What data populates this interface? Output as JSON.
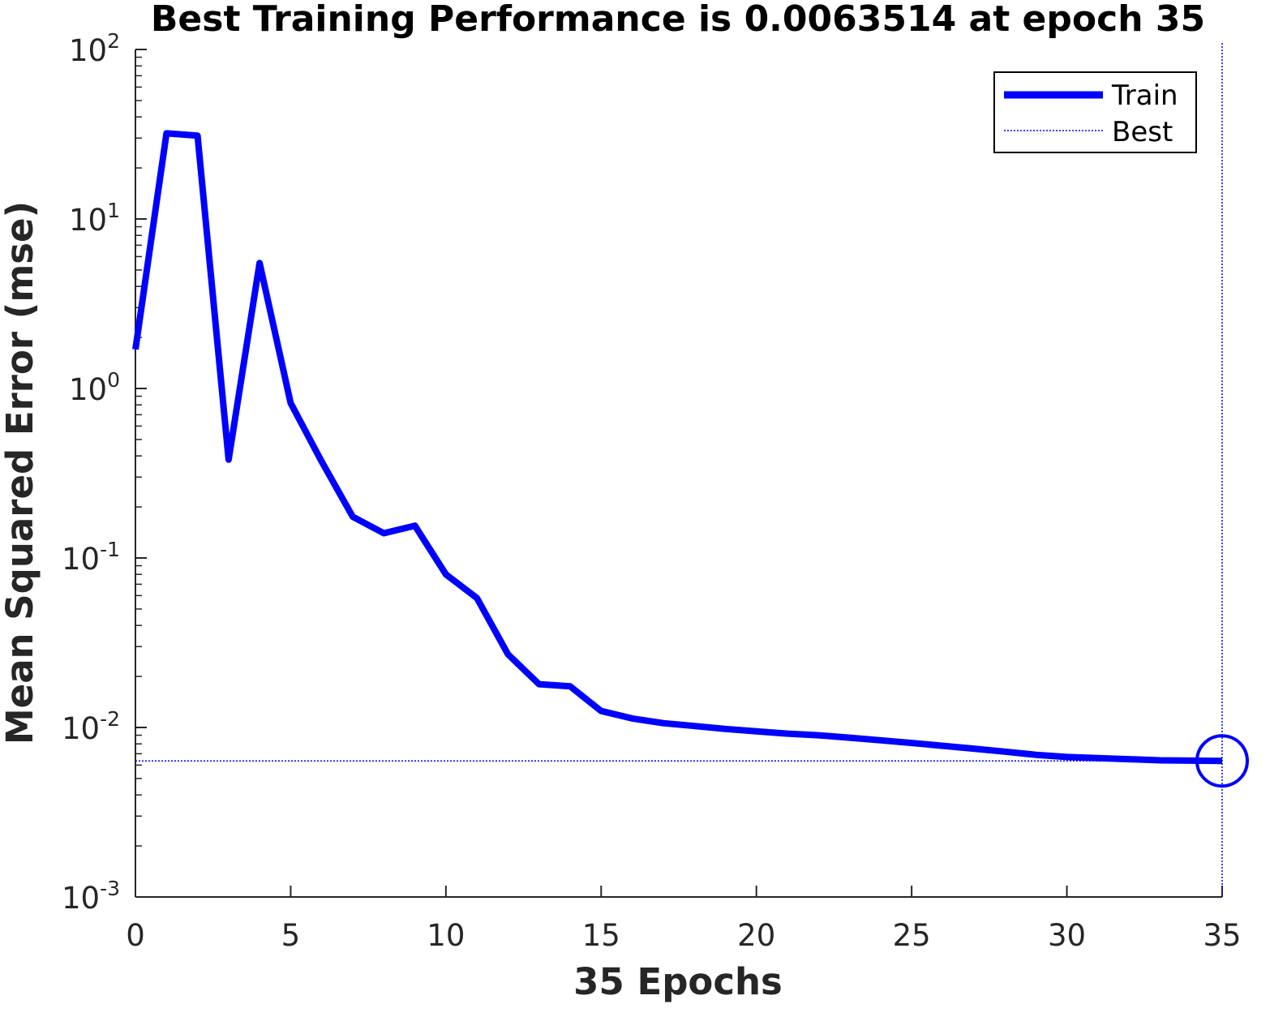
{
  "chart_data": {
    "type": "line",
    "title": "Best Training Performance is 0.0063514 at epoch 35",
    "xlabel": "35 Epochs",
    "ylabel": "Mean Squared Error  (mse)",
    "xlim": [
      0,
      35
    ],
    "ylim": [
      0.001,
      100
    ],
    "yscale": "log",
    "xticks": [
      0,
      5,
      10,
      15,
      20,
      25,
      30,
      35
    ],
    "xtick_labels": [
      "0",
      "5",
      "10",
      "15",
      "20",
      "25",
      "30",
      "35"
    ],
    "yticks": [
      0.001,
      0.01,
      0.1,
      1,
      10,
      100
    ],
    "ytick_labels": [
      {
        "base": "10",
        "exp": "-3"
      },
      {
        "base": "10",
        "exp": "-2"
      },
      {
        "base": "10",
        "exp": "-1"
      },
      {
        "base": "10",
        "exp": "0"
      },
      {
        "base": "10",
        "exp": "1"
      },
      {
        "base": "10",
        "exp": "2"
      }
    ],
    "legend_position": "top-right",
    "grid": false,
    "series": [
      {
        "name": "Train",
        "color": "#0000ff",
        "x": [
          0,
          1,
          2,
          3,
          4,
          5,
          6,
          7,
          8,
          9,
          10,
          11,
          12,
          13,
          14,
          15,
          16,
          17,
          18,
          19,
          20,
          21,
          22,
          23,
          24,
          25,
          26,
          27,
          28,
          29,
          30,
          31,
          32,
          33,
          34,
          35
        ],
        "y": [
          1.7,
          32,
          31,
          0.38,
          5.5,
          0.82,
          0.37,
          0.175,
          0.14,
          0.155,
          0.08,
          0.058,
          0.027,
          0.018,
          0.0175,
          0.0125,
          0.0113,
          0.0106,
          0.0102,
          0.0098,
          0.0095,
          0.0092,
          0.009,
          0.0087,
          0.0084,
          0.0081,
          0.0078,
          0.0075,
          0.0072,
          0.0069,
          0.0067,
          0.0066,
          0.0065,
          0.0064,
          0.00637,
          0.0063514
        ]
      }
    ],
    "best": {
      "name": "Best",
      "epoch": 35,
      "value": 0.0063514,
      "color": "#0000ff"
    }
  }
}
